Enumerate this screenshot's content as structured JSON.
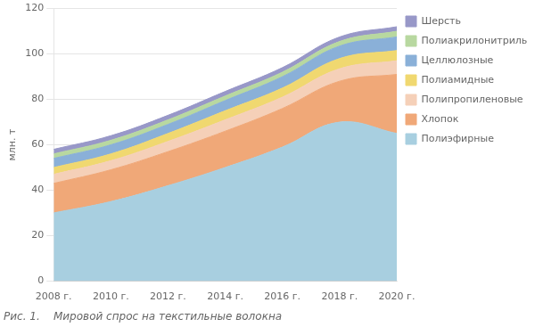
{
  "chart_data": {
    "type": "area",
    "title": "Рис. 1.    Мировой спрос на текстильные волокна",
    "ylabel": "млн. т",
    "stacked": true,
    "grid": true,
    "legend": "right",
    "x": [
      2008,
      2010,
      2012,
      2014,
      2016,
      2018,
      2020
    ],
    "xlim": [
      2008,
      2020
    ],
    "xticks": [
      {
        "value": 2008,
        "label": "2008 г."
      },
      {
        "value": 2010,
        "label": "2010 г."
      },
      {
        "value": 2012,
        "label": "2012 г."
      },
      {
        "value": 2014,
        "label": "2014 г."
      },
      {
        "value": 2016,
        "label": "2016 г."
      },
      {
        "value": 2018,
        "label": "2018 г."
      },
      {
        "value": 2020,
        "label": "2020 г."
      }
    ],
    "ylim": [
      0,
      120
    ],
    "yticks": [
      0,
      20,
      40,
      60,
      80,
      100,
      120
    ],
    "series": [
      {
        "name": "Полиэфирные",
        "color": "#a8cfe0",
        "values": [
          30,
          35,
          42,
          50,
          59,
          70,
          65
        ]
      },
      {
        "name": "Хлопок",
        "color": "#f0a878",
        "values": [
          13,
          14,
          15,
          16,
          17,
          18,
          26
        ]
      },
      {
        "name": "Полипропиленовые",
        "color": "#f5d0b8",
        "values": [
          4,
          4,
          4.5,
          5,
          5,
          5.5,
          6
        ]
      },
      {
        "name": "Полиамидные",
        "color": "#f0d870",
        "values": [
          3,
          3,
          3.5,
          4,
          4,
          4.5,
          4.5
        ]
      },
      {
        "name": "Целлюлозные",
        "color": "#8ab0d8",
        "values": [
          4,
          4,
          4,
          4.5,
          5,
          5.5,
          6
        ]
      },
      {
        "name": "Полиакрилонитрильные",
        "color": "#b8d8a0",
        "values": [
          2,
          2,
          2,
          2,
          2,
          2,
          2.5
        ]
      },
      {
        "name": "Шерсть",
        "color": "#9898c8",
        "values": [
          2,
          2,
          2,
          2,
          2,
          2,
          2
        ]
      }
    ]
  }
}
